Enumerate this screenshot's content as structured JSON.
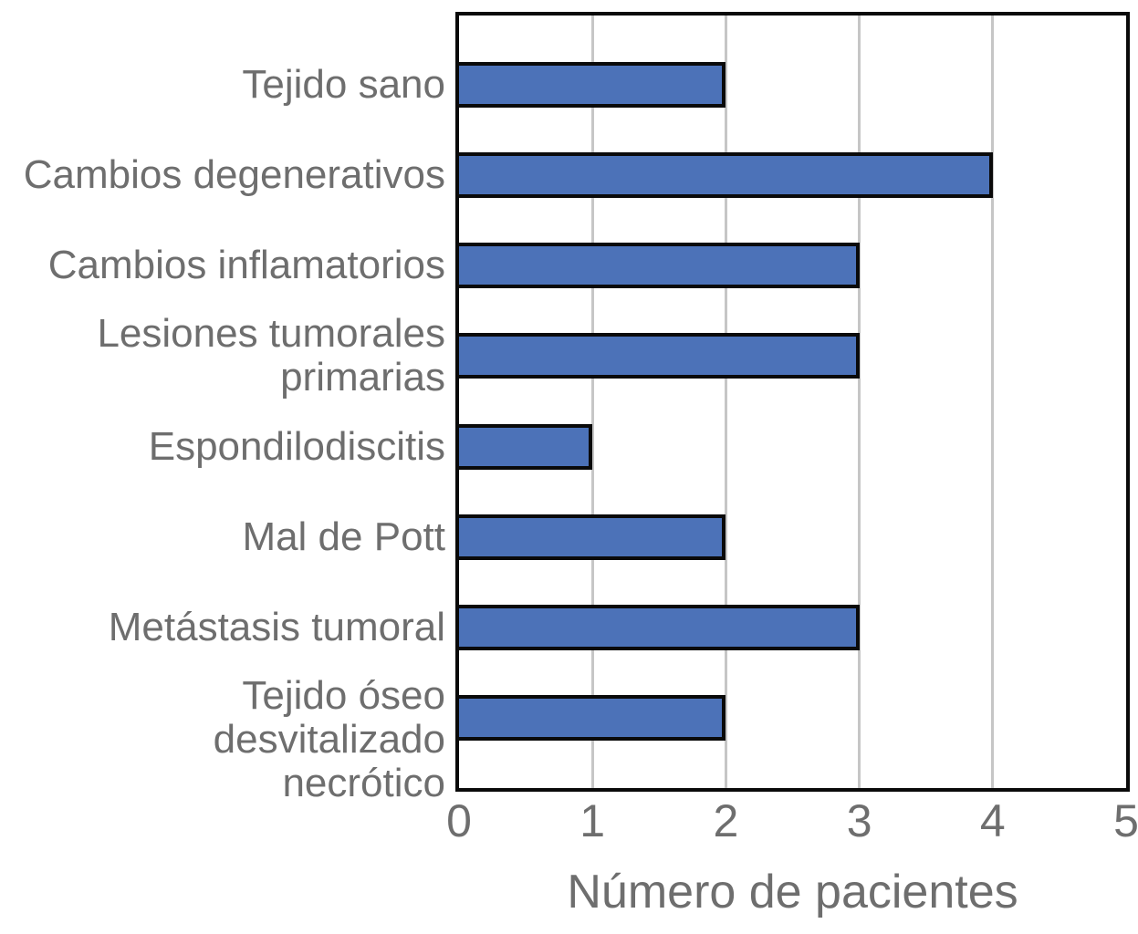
{
  "chart_data": {
    "type": "bar",
    "orientation": "horizontal",
    "categories": [
      "Tejido sano",
      "Cambios degenerativos",
      "Cambios inflamatorios",
      "Lesiones tumorales\nprimarias",
      "Espondilodiscitis",
      "Mal de Pott",
      "Metástasis tumoral",
      "Tejido óseo desvitalizado\nnecrótico"
    ],
    "values": [
      2,
      4,
      3,
      3,
      1,
      2,
      3,
      2
    ],
    "title": "",
    "xlabel": "Número de pacientes",
    "ylabel": "",
    "xlim": [
      0,
      5
    ],
    "xticks": [
      "0",
      "1",
      "2",
      "3",
      "4",
      "5"
    ],
    "grid": true,
    "grid_axis": "x",
    "legend": false,
    "colors": {
      "bar_fill": "#4C72B8",
      "bar_border": "#0a0a0a",
      "plot_border": "#0a0a0a",
      "gridline": "#c6c6c6",
      "text": "#6e6e6e",
      "background": "#ffffff"
    }
  }
}
